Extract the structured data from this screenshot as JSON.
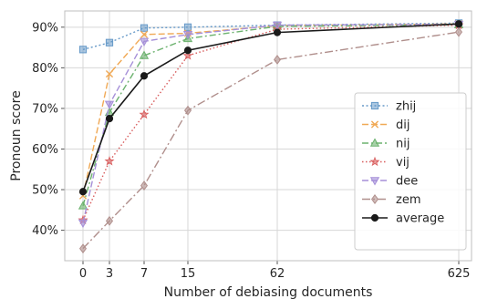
{
  "chart_data": {
    "type": "line",
    "xlabel": "Number of debiasing documents",
    "ylabel": "Pronoun score",
    "x_ticks": [
      "0",
      "3",
      "7",
      "15",
      "62",
      "625"
    ],
    "y_ticks": [
      "40%",
      "50%",
      "60%",
      "70%",
      "80%",
      "90%"
    ],
    "y_tick_values": [
      40,
      50,
      60,
      70,
      80,
      90
    ],
    "ylim": [
      32.5,
      94
    ],
    "grid": true,
    "legend_position": "lower-right",
    "series": [
      {
        "name": "zhij",
        "color": "#6699c8",
        "marker": "square",
        "dash": "2,2.5",
        "values": [
          84.5,
          86.2,
          89.8,
          90.0,
          90.5,
          91.0
        ]
      },
      {
        "name": "dij",
        "color": "#f0a955",
        "marker": "x",
        "dash": "7,3",
        "values": [
          48.5,
          78.5,
          88.2,
          88.5,
          90.4,
          90.8
        ]
      },
      {
        "name": "nij",
        "color": "#6cb26e",
        "marker": "triangle-up",
        "dash": "7,3,2,3",
        "values": [
          46.0,
          69.0,
          83.0,
          87.2,
          90.2,
          90.6
        ]
      },
      {
        "name": "vij",
        "color": "#d85c5c",
        "marker": "star",
        "dash": "1.5,2.5",
        "values": [
          42.5,
          57.0,
          68.5,
          83.0,
          89.5,
          90.5
        ]
      },
      {
        "name": "dee",
        "color": "#a58fd8",
        "marker": "triangle-down",
        "dash": "7,3",
        "values": [
          41.8,
          71.0,
          86.5,
          88.2,
          90.5,
          90.7
        ]
      },
      {
        "name": "zem",
        "color": "#b08f8c",
        "marker": "diamond",
        "dash": "9,3,2,3",
        "values": [
          35.5,
          42.3,
          51.0,
          69.5,
          82.0,
          88.8
        ]
      },
      {
        "name": "average",
        "color": "#1a1a1a",
        "marker": "circle",
        "dash": "",
        "values": [
          49.5,
          67.5,
          78.0,
          84.3,
          88.7,
          90.8
        ]
      }
    ]
  }
}
